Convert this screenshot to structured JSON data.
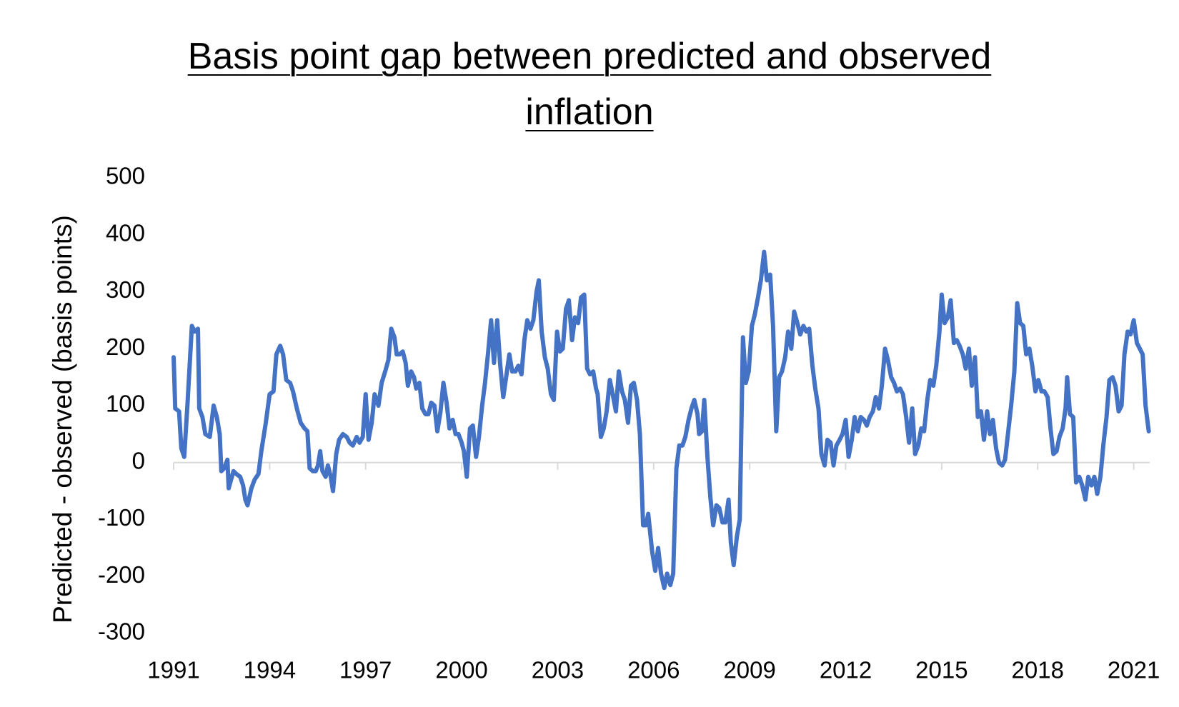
{
  "chart_data": {
    "type": "line",
    "title": "Basis point gap between predicted and observed inflation",
    "y_label": "Predicted - observed (basis points)",
    "xlim": [
      1991,
      2021.5
    ],
    "xticks": [
      1991,
      1994,
      1997,
      2000,
      2003,
      2006,
      2009,
      2012,
      2015,
      2018,
      2021
    ],
    "ylim": [
      -300,
      500
    ],
    "yticks": [
      -300,
      -200,
      -100,
      0,
      100,
      200,
      300,
      400,
      500
    ],
    "grid": false,
    "x": [
      1991.0,
      1991.05,
      1991.17,
      1991.24,
      1991.33,
      1991.43,
      1991.57,
      1991.66,
      1991.76,
      1991.8,
      1991.9,
      1991.99,
      1992.13,
      1992.25,
      1992.35,
      1992.44,
      1992.49,
      1992.58,
      1992.68,
      1992.72,
      1992.87,
      1992.96,
      1993.08,
      1993.17,
      1993.24,
      1993.31,
      1993.43,
      1993.53,
      1993.65,
      1993.74,
      1993.88,
      1994.0,
      1994.12,
      1994.21,
      1994.33,
      1994.42,
      1994.52,
      1994.64,
      1994.73,
      1994.85,
      1994.97,
      1995.09,
      1995.18,
      1995.25,
      1995.35,
      1995.44,
      1995.51,
      1995.58,
      1995.65,
      1995.75,
      1995.82,
      1995.91,
      1995.98,
      1996.08,
      1996.17,
      1996.29,
      1996.41,
      1996.5,
      1996.6,
      1996.72,
      1996.81,
      1996.91,
      1997.0,
      1997.09,
      1997.19,
      1997.28,
      1997.4,
      1997.5,
      1997.61,
      1997.71,
      1997.8,
      1997.9,
      1997.97,
      1998.06,
      1998.16,
      1998.25,
      1998.32,
      1998.42,
      1998.51,
      1998.58,
      1998.68,
      1998.77,
      1998.87,
      1998.96,
      1999.05,
      1999.15,
      1999.24,
      1999.34,
      1999.43,
      1999.53,
      1999.62,
      1999.72,
      1999.81,
      1999.9,
      2000.0,
      2000.07,
      2000.16,
      2000.26,
      2000.35,
      2000.45,
      2000.54,
      2000.64,
      2000.73,
      2000.83,
      2000.92,
      2001.01,
      2001.11,
      2001.2,
      2001.3,
      2001.39,
      2001.49,
      2001.58,
      2001.68,
      2001.77,
      2001.87,
      2001.96,
      2002.05,
      2002.15,
      2002.24,
      2002.34,
      2002.41,
      2002.5,
      2002.6,
      2002.69,
      2002.79,
      2002.88,
      2002.98,
      2003.07,
      2003.16,
      2003.26,
      2003.35,
      2003.45,
      2003.54,
      2003.64,
      2003.73,
      2003.83,
      2003.92,
      2004.01,
      2004.11,
      2004.2,
      2004.25,
      2004.35,
      2004.44,
      2004.53,
      2004.63,
      2004.72,
      2004.82,
      2004.91,
      2005.01,
      2005.1,
      2005.2,
      2005.29,
      2005.38,
      2005.48,
      2005.57,
      2005.67,
      2005.76,
      2005.83,
      2005.95,
      2006.05,
      2006.14,
      2006.23,
      2006.33,
      2006.42,
      2006.52,
      2006.61,
      2006.71,
      2006.8,
      2006.9,
      2006.99,
      2007.09,
      2007.18,
      2007.27,
      2007.37,
      2007.42,
      2007.51,
      2007.58,
      2007.68,
      2007.77,
      2007.86,
      2007.96,
      2008.05,
      2008.15,
      2008.24,
      2008.34,
      2008.41,
      2008.5,
      2008.6,
      2008.69,
      2008.79,
      2008.88,
      2008.97,
      2009.07,
      2009.16,
      2009.26,
      2009.35,
      2009.45,
      2009.54,
      2009.64,
      2009.73,
      2009.83,
      2009.92,
      2010.01,
      2010.11,
      2010.2,
      2010.3,
      2010.39,
      2010.49,
      2010.58,
      2010.68,
      2010.77,
      2010.86,
      2010.96,
      2011.05,
      2011.15,
      2011.24,
      2011.34,
      2011.43,
      2011.53,
      2011.62,
      2011.71,
      2011.81,
      2011.9,
      2012.0,
      2012.09,
      2012.19,
      2012.28,
      2012.38,
      2012.47,
      2012.57,
      2012.66,
      2012.75,
      2012.85,
      2012.94,
      2013.04,
      2013.13,
      2013.23,
      2013.32,
      2013.42,
      2013.51,
      2013.6,
      2013.7,
      2013.79,
      2013.89,
      2013.98,
      2014.08,
      2014.17,
      2014.27,
      2014.36,
      2014.45,
      2014.55,
      2014.64,
      2014.74,
      2014.83,
      2014.93,
      2015.0,
      2015.09,
      2015.19,
      2015.28,
      2015.38,
      2015.47,
      2015.56,
      2015.66,
      2015.75,
      2015.85,
      2015.94,
      2016.04,
      2016.13,
      2016.23,
      2016.32,
      2016.42,
      2016.51,
      2016.6,
      2016.7,
      2016.79,
      2016.89,
      2016.98,
      2017.08,
      2017.17,
      2017.27,
      2017.36,
      2017.45,
      2017.55,
      2017.64,
      2017.74,
      2017.83,
      2017.93,
      2018.02,
      2018.12,
      2018.21,
      2018.31,
      2018.4,
      2018.49,
      2018.59,
      2018.68,
      2018.78,
      2018.87,
      2018.92,
      2019.01,
      2019.11,
      2019.2,
      2019.3,
      2019.39,
      2019.49,
      2019.58,
      2019.68,
      2019.77,
      2019.86,
      2019.96,
      2020.05,
      2020.15,
      2020.24,
      2020.34,
      2020.43,
      2020.53,
      2020.62,
      2020.71,
      2020.81,
      2020.9,
      2021.0,
      2021.1,
      2021.19,
      2021.28,
      2021.37,
      2021.47
    ],
    "series": [
      {
        "color": "#4472c4",
        "values": [
          185,
          95,
          90,
          25,
          10,
          100,
          240,
          230,
          235,
          95,
          80,
          50,
          45,
          100,
          80,
          50,
          -15,
          -10,
          5,
          -45,
          -15,
          -20,
          -25,
          -40,
          -65,
          -75,
          -45,
          -30,
          -20,
          20,
          70,
          120,
          125,
          190,
          205,
          190,
          145,
          140,
          125,
          95,
          70,
          60,
          55,
          -10,
          -15,
          -15,
          -5,
          20,
          -15,
          -25,
          -5,
          -25,
          -50,
          15,
          40,
          50,
          45,
          35,
          30,
          45,
          35,
          45,
          120,
          40,
          70,
          120,
          100,
          140,
          160,
          180,
          235,
          220,
          190,
          190,
          195,
          175,
          135,
          160,
          150,
          130,
          140,
          95,
          85,
          85,
          105,
          100,
          55,
          90,
          140,
          105,
          60,
          75,
          50,
          50,
          35,
          20,
          -25,
          60,
          65,
          10,
          45,
          100,
          140,
          195,
          250,
          175,
          250,
          175,
          115,
          150,
          190,
          160,
          160,
          170,
          155,
          215,
          250,
          235,
          250,
          300,
          320,
          230,
          185,
          165,
          120,
          110,
          230,
          195,
          200,
          270,
          285,
          215,
          255,
          245,
          290,
          295,
          165,
          155,
          160,
          130,
          120,
          45,
          60,
          90,
          145,
          120,
          90,
          160,
          125,
          110,
          70,
          135,
          140,
          110,
          50,
          -110,
          -110,
          -90,
          -155,
          -190,
          -150,
          -195,
          -220,
          -195,
          -215,
          -195,
          -10,
          30,
          30,
          45,
          75,
          95,
          110,
          85,
          50,
          55,
          110,
          10,
          -60,
          -110,
          -75,
          -80,
          -105,
          -105,
          -65,
          -140,
          -180,
          -130,
          -100,
          220,
          140,
          160,
          240,
          260,
          290,
          320,
          370,
          320,
          330,
          240,
          55,
          150,
          160,
          185,
          230,
          200,
          265,
          245,
          225,
          240,
          230,
          235,
          170,
          130,
          95,
          15,
          -5,
          40,
          35,
          -5,
          30,
          40,
          50,
          75,
          10,
          40,
          80,
          55,
          80,
          75,
          65,
          80,
          90,
          115,
          95,
          135,
          200,
          180,
          150,
          140,
          125,
          130,
          120,
          80,
          35,
          95,
          15,
          30,
          60,
          55,
          110,
          145,
          135,
          170,
          230,
          295,
          245,
          255,
          285,
          210,
          215,
          205,
          190,
          165,
          200,
          135,
          185,
          80,
          90,
          40,
          90,
          50,
          75,
          25,
          0,
          -5,
          5,
          55,
          100,
          160,
          280,
          245,
          240,
          190,
          200,
          170,
          125,
          145,
          125,
          125,
          115,
          60,
          15,
          20,
          45,
          60,
          95,
          150,
          85,
          80,
          -35,
          -25,
          -40,
          -65,
          -25,
          -40,
          -25,
          -55,
          -25,
          30,
          80,
          145,
          150,
          135,
          90,
          100,
          190,
          230,
          225,
          250,
          210,
          200,
          190,
          100,
          55
        ]
      }
    ]
  }
}
